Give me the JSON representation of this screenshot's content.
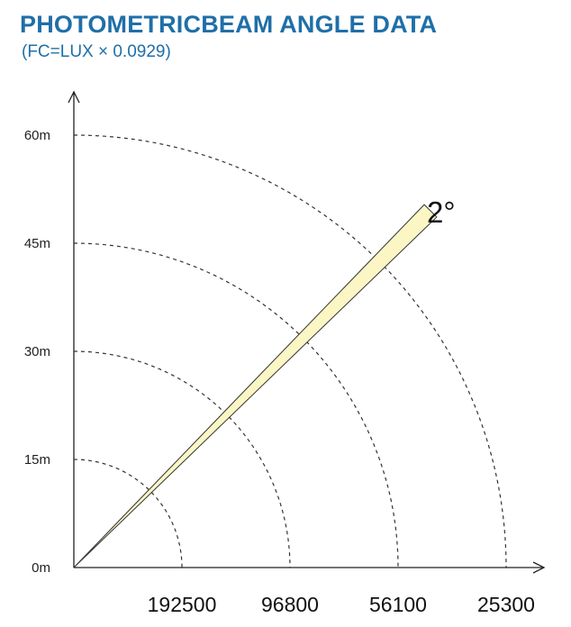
{
  "header": {
    "title": "PHOTOMETRICBEAM ANGLE DATA",
    "subtitle": "(FC=LUX × 0.0929)"
  },
  "colors": {
    "title": "#1f6fa8",
    "axis": "#222222",
    "arc": "#333333",
    "beam_fill": "#fbf6c4",
    "beam_stroke": "#333333"
  },
  "chart_data": {
    "type": "polar-beam",
    "beam_angle_label": "2°",
    "beam_angle_deg": 2,
    "beam_direction_deg": 45,
    "distances_m": [
      15,
      30,
      45,
      60
    ],
    "y_tick_labels": [
      "0m",
      "15m",
      "30m",
      "45m",
      "60m"
    ],
    "x_tick_labels": [
      "192500",
      "96800",
      "56100",
      "25300"
    ],
    "lux_values": [
      192500,
      96800,
      56100,
      25300
    ],
    "y_range_m": [
      0,
      60
    ],
    "grid": "dashed-arcs"
  }
}
